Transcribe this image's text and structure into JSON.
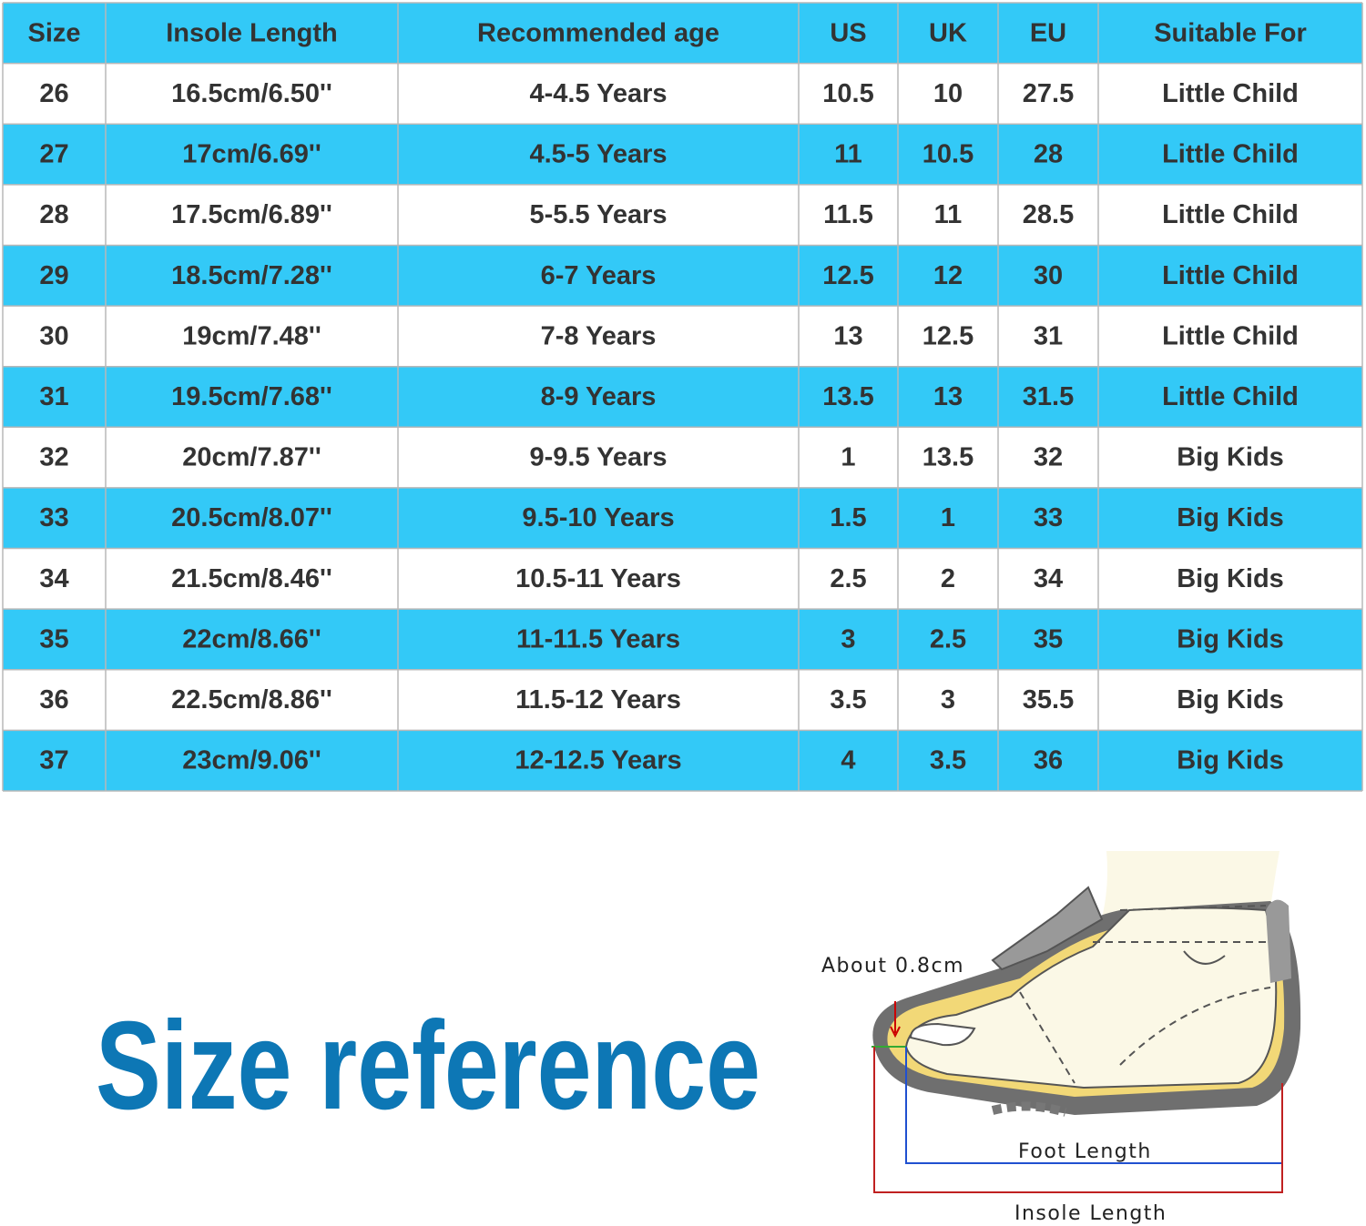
{
  "table": {
    "header": [
      "Size",
      "Insole Length",
      "Recommended age",
      "US",
      "UK",
      "EU",
      "Suitable For"
    ],
    "rows": [
      [
        "26",
        "16.5cm/6.50''",
        "4-4.5 Years",
        "10.5",
        "10",
        "27.5",
        "Little Child"
      ],
      [
        "27",
        "17cm/6.69''",
        "4.5-5 Years",
        "11",
        "10.5",
        "28",
        "Little Child"
      ],
      [
        "28",
        "17.5cm/6.89''",
        "5-5.5 Years",
        "11.5",
        "11",
        "28.5",
        "Little Child"
      ],
      [
        "29",
        "18.5cm/7.28''",
        "6-7 Years",
        "12.5",
        "12",
        "30",
        "Little Child"
      ],
      [
        "30",
        "19cm/7.48''",
        "7-8 Years",
        "13",
        "12.5",
        "31",
        "Little Child"
      ],
      [
        "31",
        "19.5cm/7.68''",
        "8-9 Years",
        "13.5",
        "13",
        "31.5",
        "Little Child"
      ],
      [
        "32",
        "20cm/7.87''",
        "9-9.5 Years",
        "1",
        "13.5",
        "32",
        "Big Kids"
      ],
      [
        "33",
        "20.5cm/8.07''",
        "9.5-10 Years",
        "1.5",
        "1",
        "33",
        "Big Kids"
      ],
      [
        "34",
        "21.5cm/8.46''",
        "10.5-11 Years",
        "2.5",
        "2",
        "34",
        "Big Kids"
      ],
      [
        "35",
        "22cm/8.66''",
        "11-11.5 Years",
        "3",
        "2.5",
        "35",
        "Big Kids"
      ],
      [
        "36",
        "22.5cm/8.86''",
        "11.5-12 Years",
        "3.5",
        "3",
        "35.5",
        "Big Kids"
      ],
      [
        "37",
        "23cm/9.06''",
        "12-12.5 Years",
        "4",
        "3.5",
        "36",
        "Big Kids"
      ]
    ]
  },
  "reference": {
    "title": "Size reference"
  },
  "diagram": {
    "gap_label": "About 0.8cm",
    "foot_label": "Foot Length",
    "insole_label": "Insole Length"
  }
}
